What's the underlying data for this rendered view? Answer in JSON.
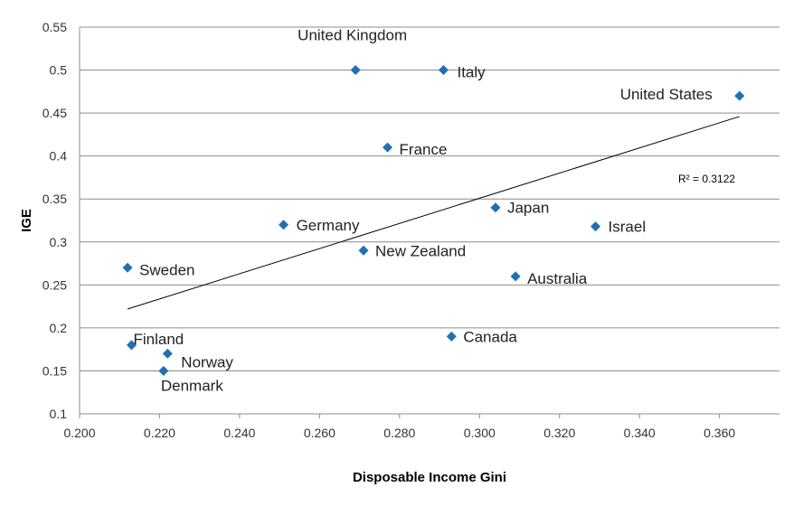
{
  "chart_data": {
    "type": "scatter",
    "xlabel": "Disposable Income Gini",
    "ylabel": "IGE",
    "xlim": [
      0.2,
      0.36
    ],
    "ylim": [
      0.1,
      0.55
    ],
    "x_ticks": [
      "0.200",
      "0.220",
      "0.240",
      "0.260",
      "0.280",
      "0.300",
      "0.320",
      "0.340",
      "0.360"
    ],
    "y_ticks": [
      "0.1",
      "0.15",
      "0.2",
      "0.25",
      "0.3",
      "0.35",
      "0.4",
      "0.45",
      "0.5",
      "0.55"
    ],
    "grid": "horizontal",
    "marker_color": "#1f6fb5",
    "points": [
      {
        "label": "United Kingdom",
        "x": 0.269,
        "y": 0.5
      },
      {
        "label": "Italy",
        "x": 0.291,
        "y": 0.5
      },
      {
        "label": "United States",
        "x": 0.365,
        "y": 0.47
      },
      {
        "label": "France",
        "x": 0.277,
        "y": 0.41
      },
      {
        "label": "Japan",
        "x": 0.304,
        "y": 0.34
      },
      {
        "label": "Germany",
        "x": 0.251,
        "y": 0.32
      },
      {
        "label": "Israel",
        "x": 0.329,
        "y": 0.318
      },
      {
        "label": "New Zealand",
        "x": 0.271,
        "y": 0.29
      },
      {
        "label": "Sweden",
        "x": 0.212,
        "y": 0.27
      },
      {
        "label": "Australia",
        "x": 0.309,
        "y": 0.26
      },
      {
        "label": "Canada",
        "x": 0.293,
        "y": 0.19
      },
      {
        "label": "Finland",
        "x": 0.213,
        "y": 0.18
      },
      {
        "label": "Norway",
        "x": 0.222,
        "y": 0.17
      },
      {
        "label": "Denmark",
        "x": 0.221,
        "y": 0.15
      }
    ],
    "trendline": {
      "x1": 0.212,
      "y1": 0.222,
      "x2": 0.365,
      "y2": 0.446,
      "r2_label": "R² = 0.3122"
    }
  }
}
